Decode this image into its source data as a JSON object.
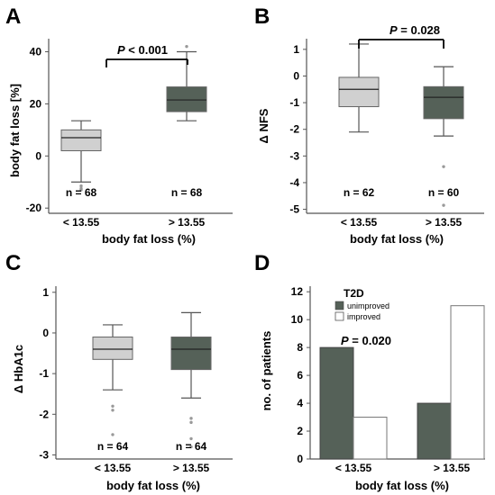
{
  "colors": {
    "light_box": "#d0d0d0",
    "dark_box": "#556158",
    "axis": "#555555",
    "outlier": "#999999"
  },
  "chart_data": [
    {
      "panel": "A",
      "type": "box",
      "ylabel": "body fat loss [%]",
      "xlabel": "",
      "ylim": [
        -22,
        45
      ],
      "yticks": [
        "40",
        "20",
        "0",
        "-20"
      ],
      "ytick_values": [
        40,
        20,
        0,
        -20
      ],
      "p_value": "P < 0.001",
      "p_text": "< 0.001",
      "groups": [
        {
          "category": "",
          "n_label": "n = 68",
          "color": "light",
          "whisker_low": -10,
          "q1": 2,
          "median": 7,
          "q3": 10,
          "whisker_high": 13.5,
          "outliers": [
            -11.5,
            -12.5,
            -13
          ]
        },
        {
          "category": "",
          "n_label": "n = 68",
          "color": "dark",
          "whisker_low": 13.5,
          "q1": 17,
          "median": 21.5,
          "q3": 26.5,
          "whisker_high": 40,
          "outliers": [
            42
          ]
        }
      ]
    },
    {
      "panel": "B",
      "type": "box",
      "ylabel": "Δ NFS",
      "xlabel": "body fat loss (%)",
      "ylim": [
        -5.15,
        1.4
      ],
      "yticks": [
        "1",
        "0",
        "-1",
        "-2",
        "-3",
        "-4",
        "-5"
      ],
      "ytick_values": [
        1,
        0,
        -1,
        -2,
        -3,
        -4,
        -5
      ],
      "p_value": "P = 0.028",
      "p_text": "= 0.028",
      "groups": [
        {
          "category": "< 13.55",
          "n_label": "n = 62",
          "color": "light",
          "whisker_low": -2.1,
          "q1": -1.15,
          "median": -0.5,
          "q3": -0.05,
          "whisker_high": 1.2,
          "outliers": []
        },
        {
          "category": "> 13.55",
          "n_label": "n = 60",
          "color": "dark",
          "whisker_low": -2.25,
          "q1": -1.6,
          "median": -0.8,
          "q3": -0.4,
          "whisker_high": 0.35,
          "outliers": [
            -3.4,
            -4.85
          ]
        }
      ]
    },
    {
      "panel": "C",
      "type": "box",
      "ylabel": "Δ HbA1c",
      "xlabel": "body fat loss (%)",
      "ylim": [
        -3.1,
        1.15
      ],
      "yticks": [
        "1",
        "0",
        "-1",
        "-2",
        "-3"
      ],
      "ytick_values": [
        1,
        0,
        -1,
        -2,
        -3
      ],
      "groups": [
        {
          "category": "< 13.55",
          "n_label": "n = 64",
          "color": "light",
          "whisker_low": -1.4,
          "q1": -0.65,
          "median": -0.4,
          "q3": -0.1,
          "whisker_high": 0.2,
          "outliers": [
            -1.8,
            -1.9,
            -2.5
          ]
        },
        {
          "category": "> 13.55",
          "n_label": "n = 64",
          "color": "dark",
          "whisker_low": -1.6,
          "q1": -0.9,
          "median": -0.4,
          "q3": -0.1,
          "whisker_high": 0.5,
          "outliers": [
            -2.1,
            -2.2,
            -2.6,
            -2.8
          ]
        }
      ]
    },
    {
      "panel": "D",
      "type": "bar",
      "ylabel": "no. of patients",
      "xlabel": "body fat loss (%)",
      "ylim": [
        0,
        12.4
      ],
      "yticks": [
        "12",
        "10",
        "8",
        "6",
        "4",
        "2",
        "0"
      ],
      "ytick_values": [
        12,
        10,
        8,
        6,
        4,
        2,
        0
      ],
      "categories": [
        "< 13.55",
        "> 13.55"
      ],
      "legend_title": "T2D",
      "p_value": "P = 0.020",
      "p_text": "= 0.020",
      "series": [
        {
          "name": "unimproved",
          "color": "dark",
          "values": [
            8,
            4
          ]
        },
        {
          "name": "improved",
          "color": "white",
          "values": [
            3,
            11
          ]
        }
      ]
    }
  ],
  "panels": {
    "A": {
      "letter": "A",
      "p_italic": "P",
      "p_rest": " < 0.001",
      "n1": "n = 68",
      "n2": "n = 68",
      "ylabel": "body fat loss [%]",
      "cat1": "< 13.55",
      "cat2": "> 13.55",
      "xlabel": "body fat loss (%)"
    },
    "B": {
      "letter": "B",
      "p_italic": "P",
      "p_rest": " = 0.028",
      "n1": "n = 62",
      "n2": "n = 60",
      "ylabel": "Δ NFS",
      "cat1": "< 13.55",
      "cat2": "> 13.55",
      "xlabel": "body fat loss (%)"
    },
    "C": {
      "letter": "C",
      "n1": "n = 64",
      "n2": "n = 64",
      "ylabel": "Δ HbA1c",
      "cat1": "< 13.55",
      "cat2": "> 13.55",
      "xlabel": "body fat loss (%)"
    },
    "D": {
      "letter": "D",
      "p_italic": "P",
      "p_rest": " = 0.020",
      "ylabel": "no. of patients",
      "cat1": "< 13.55",
      "cat2": "> 13.55",
      "xlabel": "body fat loss (%)",
      "legend_title": "T2D",
      "legend_1": "unimproved",
      "legend_2": "improved"
    }
  }
}
